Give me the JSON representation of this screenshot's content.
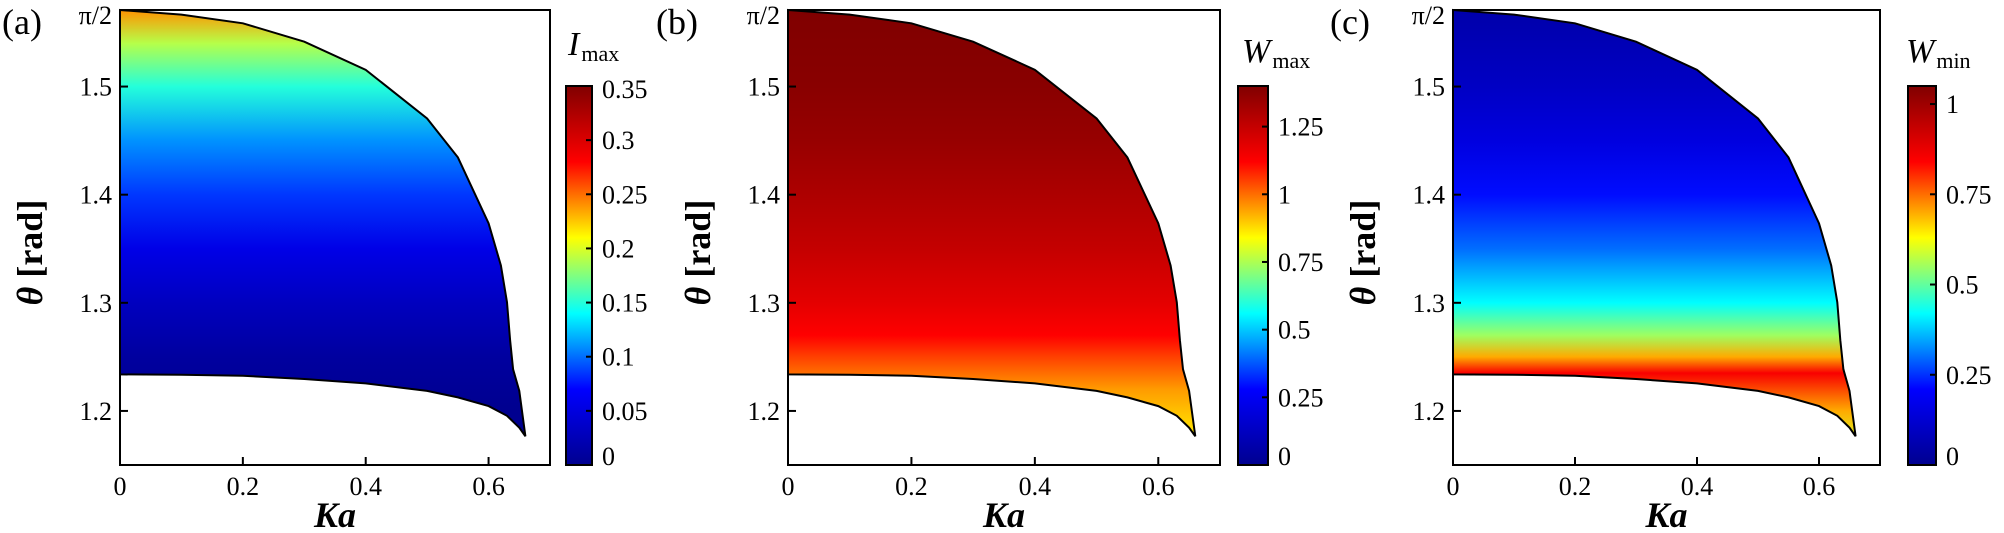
{
  "chart_data": [
    {
      "type": "heatmap",
      "panel_label": "(a)",
      "xlabel": "Ka",
      "ylabel_symbol": "θ",
      "ylabel_unit": "[rad]",
      "xlim": [
        0,
        0.7
      ],
      "ylim": [
        1.15,
        1.5708
      ],
      "x_ticks": [
        0,
        0.2,
        0.4,
        0.6
      ],
      "x_tick_labels": [
        "0",
        "0.2",
        "0.4",
        "0.6"
      ],
      "y_ticks": [
        1.2,
        1.3,
        1.4,
        1.5,
        1.5708
      ],
      "y_tick_labels": [
        "1.2",
        "1.3",
        "1.4",
        "1.5",
        "π/2"
      ],
      "region_upper_boundary": [
        [
          0,
          1.5708
        ],
        [
          0.1,
          1.5665
        ],
        [
          0.2,
          1.5585
        ],
        [
          0.3,
          1.5415
        ],
        [
          0.4,
          1.5155
        ],
        [
          0.5,
          1.4705
        ],
        [
          0.55,
          1.4345
        ],
        [
          0.6,
          1.3735
        ],
        [
          0.62,
          1.3345
        ],
        [
          0.63,
          1.3005
        ],
        [
          0.635,
          1.2655
        ],
        [
          0.64,
          1.2385
        ],
        [
          0.65,
          1.2185
        ],
        [
          0.66,
          1.1765
        ]
      ],
      "region_lower_boundary": [
        [
          0,
          1.2338
        ],
        [
          0.1,
          1.2335
        ],
        [
          0.2,
          1.2325
        ],
        [
          0.3,
          1.2295
        ],
        [
          0.4,
          1.2255
        ],
        [
          0.5,
          1.2185
        ],
        [
          0.55,
          1.2125
        ],
        [
          0.6,
          1.2045
        ],
        [
          0.63,
          1.1955
        ],
        [
          0.65,
          1.1845
        ],
        [
          0.66,
          1.1765
        ]
      ],
      "colorbar": {
        "title_main": "I",
        "title_sub": "max",
        "range": [
          0,
          0.35
        ],
        "ticks": [
          0,
          0.05,
          0.1,
          0.15,
          0.2,
          0.25,
          0.3,
          0.35
        ],
        "tick_labels": [
          "0",
          "0.05",
          "0.1",
          "0.15",
          "0.2",
          "0.25",
          "0.3",
          "0.35"
        ]
      },
      "field_profile": [
        {
          "theta": 1.5708,
          "value": 0.24
        },
        {
          "theta": 1.54,
          "value": 0.19
        },
        {
          "theta": 1.5,
          "value": 0.15
        },
        {
          "theta": 1.45,
          "value": 0.11
        },
        {
          "theta": 1.4,
          "value": 0.085
        },
        {
          "theta": 1.35,
          "value": 0.055
        },
        {
          "theta": 1.3,
          "value": 0.03
        },
        {
          "theta": 1.25,
          "value": 0.01
        },
        {
          "theta": 1.2,
          "value": 0.0
        },
        {
          "theta": 1.17,
          "value": 0.0
        }
      ]
    },
    {
      "type": "heatmap",
      "panel_label": "(b)",
      "xlabel": "Ka",
      "ylabel_symbol": "θ",
      "ylabel_unit": "[rad]",
      "xlim": [
        0,
        0.7
      ],
      "ylim": [
        1.15,
        1.5708
      ],
      "x_ticks": [
        0,
        0.2,
        0.4,
        0.6
      ],
      "x_tick_labels": [
        "0",
        "0.2",
        "0.4",
        "0.6"
      ],
      "y_ticks": [
        1.2,
        1.3,
        1.4,
        1.5,
        1.5708
      ],
      "y_tick_labels": [
        "1.2",
        "1.3",
        "1.4",
        "1.5",
        "π/2"
      ],
      "region_upper_boundary": [
        [
          0,
          1.5708
        ],
        [
          0.1,
          1.5665
        ],
        [
          0.2,
          1.5585
        ],
        [
          0.3,
          1.5415
        ],
        [
          0.4,
          1.5155
        ],
        [
          0.5,
          1.4705
        ],
        [
          0.55,
          1.4345
        ],
        [
          0.6,
          1.3735
        ],
        [
          0.62,
          1.3345
        ],
        [
          0.63,
          1.3005
        ],
        [
          0.635,
          1.2655
        ],
        [
          0.64,
          1.2385
        ],
        [
          0.65,
          1.2185
        ],
        [
          0.66,
          1.1765
        ]
      ],
      "region_lower_boundary": [
        [
          0,
          1.2338
        ],
        [
          0.1,
          1.2335
        ],
        [
          0.2,
          1.2325
        ],
        [
          0.3,
          1.2295
        ],
        [
          0.4,
          1.2255
        ],
        [
          0.5,
          1.2185
        ],
        [
          0.55,
          1.2125
        ],
        [
          0.6,
          1.2045
        ],
        [
          0.63,
          1.1955
        ],
        [
          0.65,
          1.1845
        ],
        [
          0.66,
          1.1765
        ]
      ],
      "colorbar": {
        "title_main": "W",
        "title_sub": "max",
        "range": [
          0,
          1.4
        ],
        "ticks": [
          0,
          0.25,
          0.5,
          0.75,
          1,
          1.25
        ],
        "tick_labels": [
          "0",
          "0.25",
          "0.5",
          "0.75",
          "1",
          "1.25"
        ]
      },
      "field_profile": [
        {
          "theta": 1.5708,
          "value": 1.4
        },
        {
          "theta": 1.5,
          "value": 1.38
        },
        {
          "theta": 1.45,
          "value": 1.35
        },
        {
          "theta": 1.4,
          "value": 1.3
        },
        {
          "theta": 1.35,
          "value": 1.25
        },
        {
          "theta": 1.3,
          "value": 1.18
        },
        {
          "theta": 1.27,
          "value": 1.12
        },
        {
          "theta": 1.25,
          "value": 1.05
        },
        {
          "theta": 1.22,
          "value": 0.95
        },
        {
          "theta": 1.17,
          "value": 0.85
        }
      ]
    },
    {
      "type": "heatmap",
      "panel_label": "(c)",
      "xlabel": "Ka",
      "ylabel_symbol": "θ",
      "ylabel_unit": "[rad]",
      "xlim": [
        0,
        0.7
      ],
      "ylim": [
        1.15,
        1.5708
      ],
      "x_ticks": [
        0,
        0.2,
        0.4,
        0.6
      ],
      "x_tick_labels": [
        "0",
        "0.2",
        "0.4",
        "0.6"
      ],
      "y_ticks": [
        1.2,
        1.3,
        1.4,
        1.5,
        1.5708
      ],
      "y_tick_labels": [
        "1.2",
        "1.3",
        "1.4",
        "1.5",
        "π/2"
      ],
      "region_upper_boundary": [
        [
          0,
          1.5708
        ],
        [
          0.1,
          1.5665
        ],
        [
          0.2,
          1.5585
        ],
        [
          0.3,
          1.5415
        ],
        [
          0.4,
          1.5155
        ],
        [
          0.5,
          1.4705
        ],
        [
          0.55,
          1.4345
        ],
        [
          0.6,
          1.3735
        ],
        [
          0.62,
          1.3345
        ],
        [
          0.63,
          1.3005
        ],
        [
          0.635,
          1.2655
        ],
        [
          0.64,
          1.2385
        ],
        [
          0.65,
          1.2185
        ],
        [
          0.66,
          1.1765
        ]
      ],
      "region_lower_boundary": [
        [
          0,
          1.2338
        ],
        [
          0.1,
          1.2335
        ],
        [
          0.2,
          1.2325
        ],
        [
          0.3,
          1.2295
        ],
        [
          0.4,
          1.2255
        ],
        [
          0.5,
          1.2185
        ],
        [
          0.55,
          1.2125
        ],
        [
          0.6,
          1.2045
        ],
        [
          0.63,
          1.1955
        ],
        [
          0.65,
          1.1845
        ],
        [
          0.66,
          1.1765
        ]
      ],
      "colorbar": {
        "title_main": "W",
        "title_sub": "min",
        "range": [
          0,
          1.05
        ],
        "ticks": [
          0,
          0.25,
          0.5,
          0.75,
          1
        ],
        "tick_labels": [
          "0",
          "0.25",
          "0.5",
          "0.75",
          "1"
        ]
      },
      "field_profile": [
        {
          "theta": 1.5708,
          "value": 0.05
        },
        {
          "theta": 1.5,
          "value": 0.1
        },
        {
          "theta": 1.45,
          "value": 0.15
        },
        {
          "theta": 1.4,
          "value": 0.22
        },
        {
          "theta": 1.35,
          "value": 0.3
        },
        {
          "theta": 1.3,
          "value": 0.42
        },
        {
          "theta": 1.27,
          "value": 0.55
        },
        {
          "theta": 1.25,
          "value": 0.7
        },
        {
          "theta": 1.235,
          "value": 0.85
        },
        {
          "theta": 1.2,
          "value": 0.7
        },
        {
          "theta": 1.17,
          "value": 0.6
        }
      ]
    }
  ],
  "colormap": [
    "#00008f",
    "#0000ff",
    "#00ffff",
    "#ffff00",
    "#ff0000",
    "#800000"
  ]
}
